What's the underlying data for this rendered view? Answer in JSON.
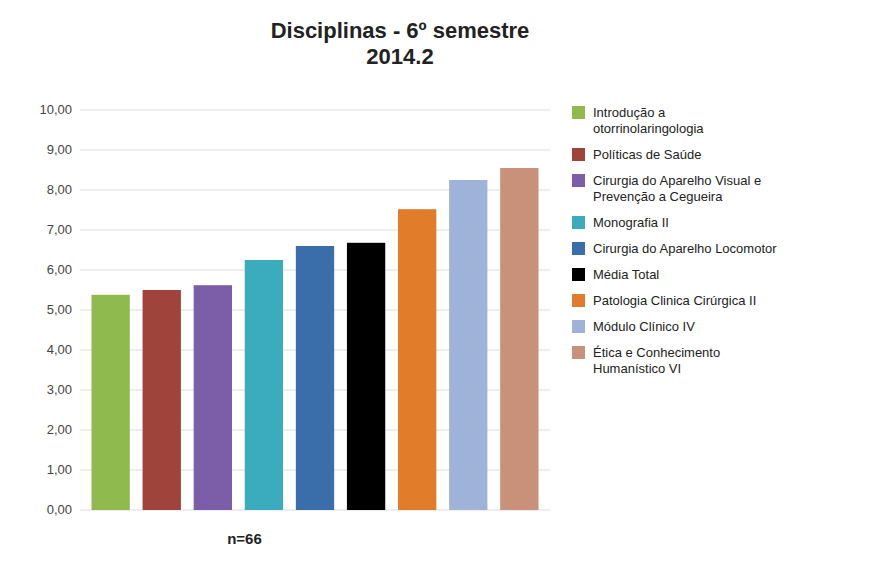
{
  "chart_data": {
    "type": "bar",
    "title": "Disciplinas - 6º semestre\n2014.2",
    "categories": [
      "Introdução a\notorrinolaringologia",
      "Políticas de Saúde",
      "Cirurgia do Aparelho Visual e\nPrevenção a Cegueira",
      "Monografia II",
      "Cirurgia do Aparelho Locomotor",
      "Média Total",
      "Patologia Clinica Cirúrgica II",
      "Módulo Clínico IV",
      "Ética e Conhecimento\nHumanístico VI"
    ],
    "values": [
      5.38,
      5.5,
      5.62,
      6.25,
      6.6,
      6.68,
      7.52,
      8.25,
      8.55
    ],
    "colors": [
      "#8fba4e",
      "#a0433a",
      "#7b5ea7",
      "#3aacbe",
      "#3a6eaa",
      "#000000",
      "#e07c2a",
      "#9fb3d8",
      "#c9917a"
    ],
    "ylim": [
      0,
      10
    ],
    "yticks": [
      {
        "value": 0,
        "label": "0,00"
      },
      {
        "value": 1,
        "label": "1,00"
      },
      {
        "value": 2,
        "label": "2,00"
      },
      {
        "value": 3,
        "label": "3,00"
      },
      {
        "value": 4,
        "label": "4,00"
      },
      {
        "value": 5,
        "label": "5,00"
      },
      {
        "value": 6,
        "label": "6,00"
      },
      {
        "value": 7,
        "label": "7,00"
      },
      {
        "value": 8,
        "label": "8,00"
      },
      {
        "value": 9,
        "label": "9,00"
      },
      {
        "value": 10,
        "label": "10,00"
      }
    ],
    "grid": true,
    "legend": "right",
    "tick_labels": "y",
    "annotation": "n=66"
  }
}
